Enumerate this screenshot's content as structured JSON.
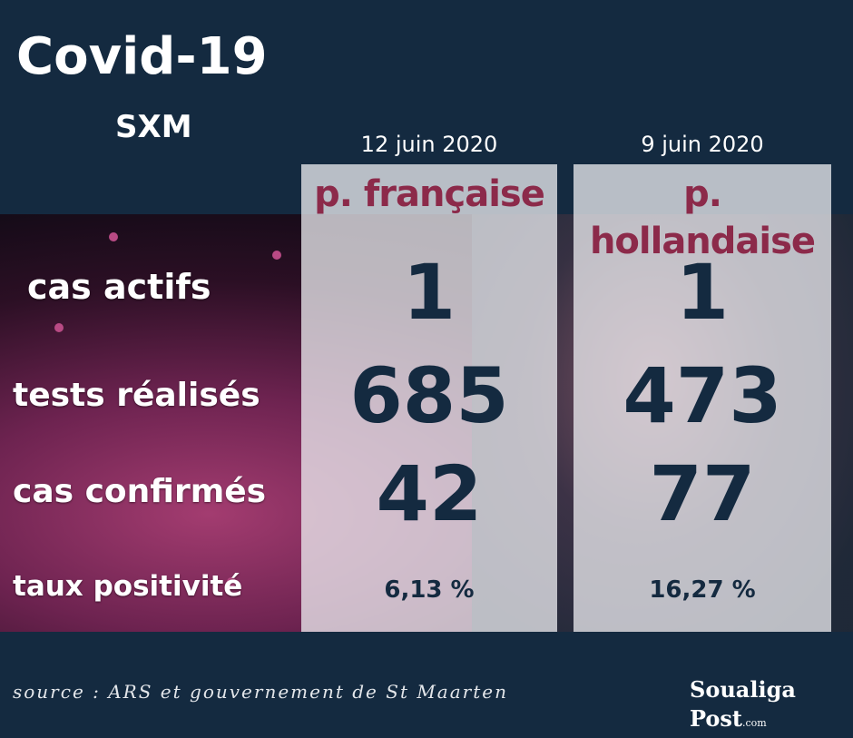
{
  "header": {
    "title": "Covid-19",
    "subtitle": "SXM"
  },
  "columns": [
    {
      "date": "12 juin 2020",
      "label": "p. française"
    },
    {
      "date": "9 juin 2020",
      "label": "p. hollandaise"
    }
  ],
  "rows": [
    {
      "label": "cas actifs",
      "values": [
        "1",
        "1"
      ]
    },
    {
      "label": "tests réalisés",
      "values": [
        "685",
        "473"
      ]
    },
    {
      "label": "cas confirmés",
      "values": [
        "42",
        "77"
      ]
    },
    {
      "label": "taux positivité",
      "values": [
        "6,13 %",
        "16,27 %"
      ]
    }
  ],
  "footer": {
    "source": "source : ARS et gouvernement de St Maarten",
    "logo_text": "Soualiga Post",
    "logo_suffix": ".com"
  },
  "colors": {
    "background": "#142a40",
    "column_heading": "#8c2a4a",
    "value_text": "#142a40"
  }
}
